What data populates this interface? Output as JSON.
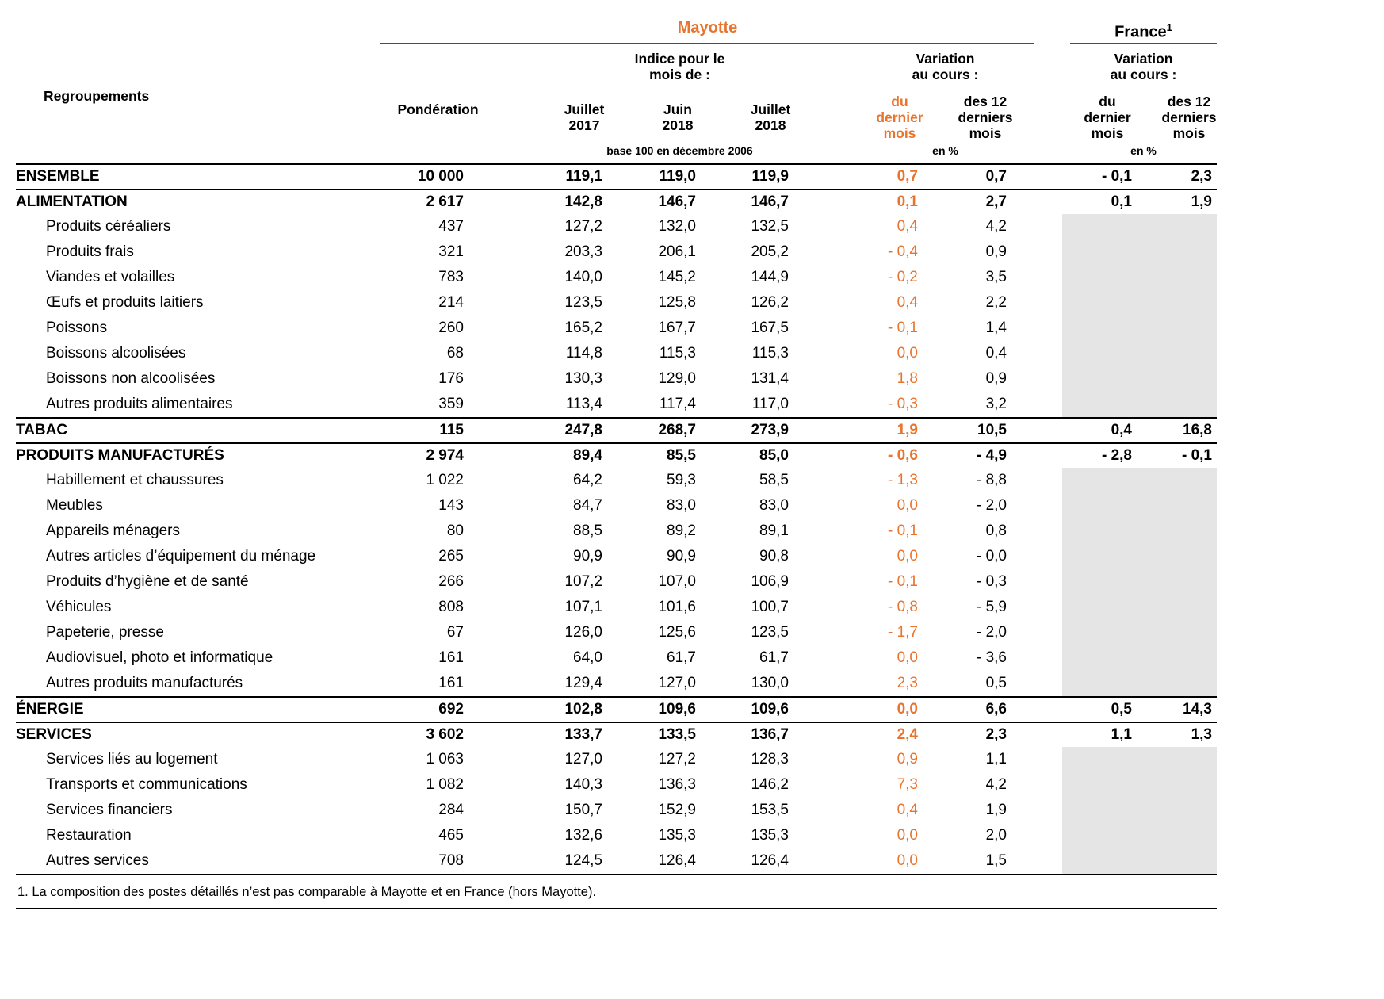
{
  "colors": {
    "accent": "#e9742e",
    "shaded": "#e5e5e5"
  },
  "header": {
    "region_mayotte": "Mayotte",
    "region_france": "France",
    "france_note_ref": "1",
    "col_group_label": "Regroupements",
    "ponderation": "Pondération",
    "indice_group": "Indice pour le\nmois de :",
    "variation_group": "Variation\nau cours :",
    "variation_group_france": "Variation\nau cours :",
    "months": [
      "Juillet\n2017",
      "Juin\n2018",
      "Juillet\n2018"
    ],
    "var_cols": [
      "du\ndernier\nmois",
      "des 12\nderniers\nmois"
    ],
    "france_var_cols": [
      "du\ndernier\nmois",
      "des 12\nderniers\nmois"
    ],
    "base_note": "base 100 en décembre 2006",
    "pct_note_mayotte": "en %",
    "pct_note_france": "en %"
  },
  "rows": [
    {
      "label": "ENSEMBLE",
      "type": "section",
      "values": [
        "10 000",
        "119,1",
        "119,0",
        "119,9",
        "0,7",
        "0,7",
        "- 0,1",
        "2,3"
      ]
    },
    {
      "label": "ALIMENTATION",
      "type": "section",
      "values": [
        "2 617",
        "142,8",
        "146,7",
        "146,7",
        "0,1",
        "2,7",
        "0,1",
        "1,9"
      ]
    },
    {
      "label": "Produits céréaliers",
      "type": "detail",
      "values": [
        "437",
        "127,2",
        "132,0",
        "132,5",
        "0,4",
        "4,2"
      ]
    },
    {
      "label": "Produits frais",
      "type": "detail",
      "values": [
        "321",
        "203,3",
        "206,1",
        "205,2",
        "- 0,4",
        "0,9"
      ]
    },
    {
      "label": "Viandes et volailles",
      "type": "detail",
      "values": [
        "783",
        "140,0",
        "145,2",
        "144,9",
        "- 0,2",
        "3,5"
      ]
    },
    {
      "label": "Œufs et produits laitiers",
      "type": "detail",
      "values": [
        "214",
        "123,5",
        "125,8",
        "126,2",
        "0,4",
        "2,2"
      ]
    },
    {
      "label": "Poissons",
      "type": "detail",
      "values": [
        "260",
        "165,2",
        "167,7",
        "167,5",
        "- 0,1",
        "1,4"
      ]
    },
    {
      "label": "Boissons alcoolisées",
      "type": "detail",
      "values": [
        "68",
        "114,8",
        "115,3",
        "115,3",
        "0,0",
        "0,4"
      ]
    },
    {
      "label": "Boissons non alcoolisées",
      "type": "detail",
      "values": [
        "176",
        "130,3",
        "129,0",
        "131,4",
        "1,8",
        "0,9"
      ]
    },
    {
      "label": "Autres produits alimentaires",
      "type": "detail",
      "values": [
        "359",
        "113,4",
        "117,4",
        "117,0",
        "- 0,3",
        "3,2"
      ]
    },
    {
      "label": "TABAC",
      "type": "section",
      "values": [
        "115",
        "247,8",
        "268,7",
        "273,9",
        "1,9",
        "10,5",
        "0,4",
        "16,8"
      ]
    },
    {
      "label": "PRODUITS MANUFACTURÉS",
      "type": "section",
      "values": [
        "2 974",
        "89,4",
        "85,5",
        "85,0",
        "- 0,6",
        "- 4,9",
        "- 2,8",
        "- 0,1"
      ]
    },
    {
      "label": "Habillement et chaussures",
      "type": "detail",
      "values": [
        "1 022",
        "64,2",
        "59,3",
        "58,5",
        "- 1,3",
        "- 8,8"
      ]
    },
    {
      "label": "Meubles",
      "type": "detail",
      "values": [
        "143",
        "84,7",
        "83,0",
        "83,0",
        "0,0",
        "- 2,0"
      ]
    },
    {
      "label": "Appareils ménagers",
      "type": "detail",
      "values": [
        "80",
        "88,5",
        "89,2",
        "89,1",
        "- 0,1",
        "0,8"
      ]
    },
    {
      "label": "Autres articles d’équipement du ménage",
      "type": "detail",
      "values": [
        "265",
        "90,9",
        "90,9",
        "90,8",
        "0,0",
        "- 0,0"
      ]
    },
    {
      "label": "Produits d’hygiène et de santé",
      "type": "detail",
      "values": [
        "266",
        "107,2",
        "107,0",
        "106,9",
        "- 0,1",
        "- 0,3"
      ]
    },
    {
      "label": "Véhicules",
      "type": "detail",
      "values": [
        "808",
        "107,1",
        "101,6",
        "100,7",
        "- 0,8",
        "- 5,9"
      ]
    },
    {
      "label": "Papeterie, presse",
      "type": "detail",
      "values": [
        "67",
        "126,0",
        "125,6",
        "123,5",
        "- 1,7",
        "- 2,0"
      ]
    },
    {
      "label": "Audiovisuel, photo et informatique",
      "type": "detail",
      "values": [
        "161",
        "64,0",
        "61,7",
        "61,7",
        "0,0",
        "- 3,6"
      ]
    },
    {
      "label": "Autres produits manufacturés",
      "type": "detail",
      "values": [
        "161",
        "129,4",
        "127,0",
        "130,0",
        "2,3",
        "0,5"
      ]
    },
    {
      "label": "ÉNERGIE",
      "type": "section",
      "values": [
        "692",
        "102,8",
        "109,6",
        "109,6",
        "0,0",
        "6,6",
        "0,5",
        "14,3"
      ]
    },
    {
      "label": "SERVICES",
      "type": "section",
      "values": [
        "3 602",
        "133,7",
        "133,5",
        "136,7",
        "2,4",
        "2,3",
        "1,1",
        "1,3"
      ]
    },
    {
      "label": "Services liés au logement",
      "type": "detail",
      "values": [
        "1 063",
        "127,0",
        "127,2",
        "128,3",
        "0,9",
        "1,1"
      ]
    },
    {
      "label": "Transports et communications",
      "type": "detail",
      "values": [
        "1 082",
        "140,3",
        "136,3",
        "146,2",
        "7,3",
        "4,2"
      ]
    },
    {
      "label": "Services financiers",
      "type": "detail",
      "values": [
        "284",
        "150,7",
        "152,9",
        "153,5",
        "0,4",
        "1,9"
      ]
    },
    {
      "label": "Restauration",
      "type": "detail",
      "values": [
        "465",
        "132,6",
        "135,3",
        "135,3",
        "0,0",
        "2,0"
      ]
    },
    {
      "label": "Autres services",
      "type": "detail",
      "values": [
        "708",
        "124,5",
        "126,4",
        "126,4",
        "0,0",
        "1,5"
      ]
    }
  ],
  "footnote": "1. La composition des postes détaillés n’est pas comparable à Mayotte et en France (hors Mayotte)."
}
